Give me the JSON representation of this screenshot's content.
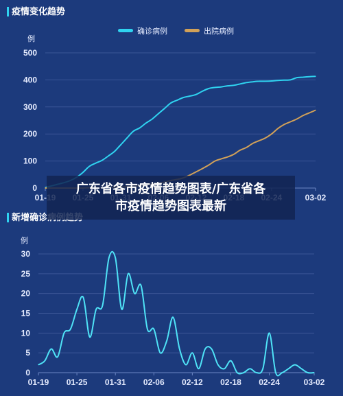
{
  "overlay": {
    "caption_line1": "广东省各市疫情趋势图表/广东省各",
    "caption_line2": "市疫情趋势图表最新"
  },
  "colors": {
    "background": "#1c3a7c",
    "confirmed": "#2fd3f0",
    "discharged": "#d2a158",
    "new_confirmed": "#4fe3f7"
  },
  "chart_data": [
    {
      "type": "line",
      "title": "疫情变化趋势",
      "ylabel": "例",
      "xlabel": "",
      "ylim": [
        0,
        500
      ],
      "yticks": [
        0,
        100,
        200,
        300,
        400,
        500
      ],
      "xticks": [
        "01-19",
        "01-25",
        "01-31",
        "02-06",
        "02-12",
        "02-18",
        "02-24",
        "03-02"
      ],
      "legend_position": "top-right",
      "grid": true,
      "x": [
        "01-19",
        "01-20",
        "01-21",
        "01-22",
        "01-23",
        "01-24",
        "01-25",
        "01-26",
        "01-27",
        "01-28",
        "01-29",
        "01-30",
        "01-31",
        "02-01",
        "02-02",
        "02-03",
        "02-04",
        "02-05",
        "02-06",
        "02-07",
        "02-08",
        "02-09",
        "02-10",
        "02-11",
        "02-12",
        "02-13",
        "02-14",
        "02-15",
        "02-16",
        "02-17",
        "02-18",
        "02-19",
        "02-20",
        "02-21",
        "02-22",
        "02-23",
        "02-24",
        "02-25",
        "02-26",
        "02-27",
        "02-28",
        "02-29",
        "03-01",
        "03-02"
      ],
      "series": [
        {
          "name": "确诊病例",
          "color": "#2fd3f0",
          "values": [
            2,
            8,
            14,
            20,
            28,
            40,
            58,
            80,
            92,
            102,
            118,
            135,
            160,
            185,
            210,
            222,
            240,
            255,
            275,
            295,
            315,
            325,
            335,
            340,
            346,
            358,
            368,
            372,
            374,
            378,
            380,
            385,
            390,
            393,
            395,
            395,
            396,
            398,
            399,
            400,
            408,
            410,
            412,
            413
          ]
        },
        {
          "name": "出院病例",
          "color": "#d2a158",
          "values": [
            0,
            0,
            0,
            0,
            0,
            0,
            0,
            1,
            1,
            1,
            2,
            3,
            4,
            5,
            7,
            9,
            12,
            15,
            18,
            22,
            28,
            32,
            38,
            48,
            60,
            72,
            85,
            100,
            108,
            115,
            125,
            140,
            150,
            165,
            175,
            185,
            200,
            220,
            235,
            245,
            255,
            268,
            278,
            288
          ]
        }
      ]
    },
    {
      "type": "line",
      "title": "新增确诊病例趋势",
      "ylabel": "例",
      "xlabel": "",
      "ylim": [
        0,
        30
      ],
      "yticks": [
        0,
        5,
        10,
        15,
        20,
        25,
        30
      ],
      "xticks": [
        "01-19",
        "01-25",
        "01-31",
        "02-06",
        "02-12",
        "02-18",
        "02-24",
        "03-02"
      ],
      "grid": true,
      "x": [
        "01-19",
        "01-20",
        "01-21",
        "01-22",
        "01-23",
        "01-24",
        "01-25",
        "01-26",
        "01-27",
        "01-28",
        "01-29",
        "01-30",
        "01-31",
        "02-01",
        "02-02",
        "02-03",
        "02-04",
        "02-05",
        "02-06",
        "02-07",
        "02-08",
        "02-09",
        "02-10",
        "02-11",
        "02-12",
        "02-13",
        "02-14",
        "02-15",
        "02-16",
        "02-17",
        "02-18",
        "02-19",
        "02-20",
        "02-21",
        "02-22",
        "02-23",
        "02-24",
        "02-25",
        "02-26",
        "02-27",
        "02-28",
        "02-29",
        "03-01",
        "03-02"
      ],
      "series": [
        {
          "color": "#4fe3f7",
          "values": [
            2,
            3,
            6,
            4,
            10,
            11,
            16,
            19,
            9,
            16,
            17,
            29,
            29,
            16,
            25,
            20,
            22,
            11,
            11,
            5,
            8,
            14,
            6,
            2,
            5,
            1,
            6,
            6,
            2,
            1,
            3,
            0,
            0,
            1,
            0,
            1,
            10,
            0,
            0,
            1,
            2,
            1,
            0,
            0
          ]
        }
      ]
    }
  ]
}
